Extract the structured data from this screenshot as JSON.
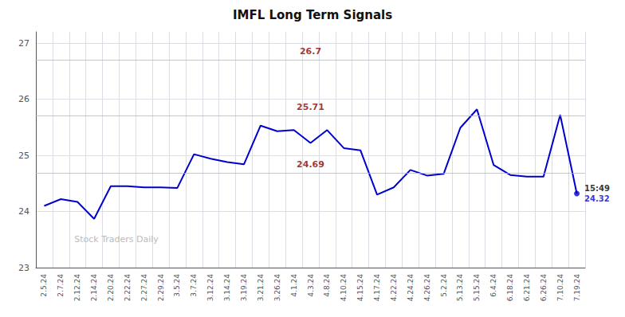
{
  "chart_data": {
    "type": "line",
    "title": "IMFL Long Term Signals",
    "categories": [
      "2.5.24",
      "2.7.24",
      "2.12.24",
      "2.14.24",
      "2.20.24",
      "2.22.24",
      "2.27.24",
      "2.29.24",
      "3.5.24",
      "3.7.24",
      "3.12.24",
      "3.14.24",
      "3.19.24",
      "3.21.24",
      "3.26.24",
      "4.1.24",
      "4.3.24",
      "4.8.24",
      "4.10.24",
      "4.15.24",
      "4.17.24",
      "4.22.24",
      "4.24.24",
      "4.26.24",
      "5.2.24",
      "5.13.24",
      "5.15.24",
      "6.4.24",
      "6.18.24",
      "6.21.24",
      "6.26.24",
      "7.10.24",
      "7.19.24"
    ],
    "values": [
      24.1,
      24.22,
      24.17,
      23.87,
      24.45,
      24.45,
      24.43,
      24.43,
      24.42,
      25.02,
      24.94,
      24.88,
      24.84,
      25.53,
      25.43,
      25.45,
      25.22,
      25.45,
      25.13,
      25.09,
      24.3,
      24.43,
      24.74,
      24.64,
      24.67,
      25.49,
      25.82,
      24.83,
      24.65,
      24.62,
      24.62,
      25.72,
      24.32
    ],
    "color": "#0000cc",
    "ylim": [
      23.0,
      27.2
    ],
    "yticks": [
      23,
      24,
      25,
      26,
      27
    ],
    "grid": true,
    "hlines": [
      {
        "value": 26.7,
        "label": "26.7",
        "color": "#8b0000",
        "line_color": "#ff9999"
      },
      {
        "value": 25.71,
        "label": "25.71",
        "color": "#8b0000",
        "line_color": "#ff9999"
      },
      {
        "value": 24.69,
        "label": "24.69",
        "color": "#8b0000",
        "line_color": "#ff9999"
      }
    ],
    "annotation": {
      "category": "7.19.24",
      "value": 24.32,
      "marker": "circle",
      "color": "#0000cc",
      "label_top": "15:49",
      "label_bottom": "24.32"
    },
    "watermark": "Stock Traders Daily"
  }
}
